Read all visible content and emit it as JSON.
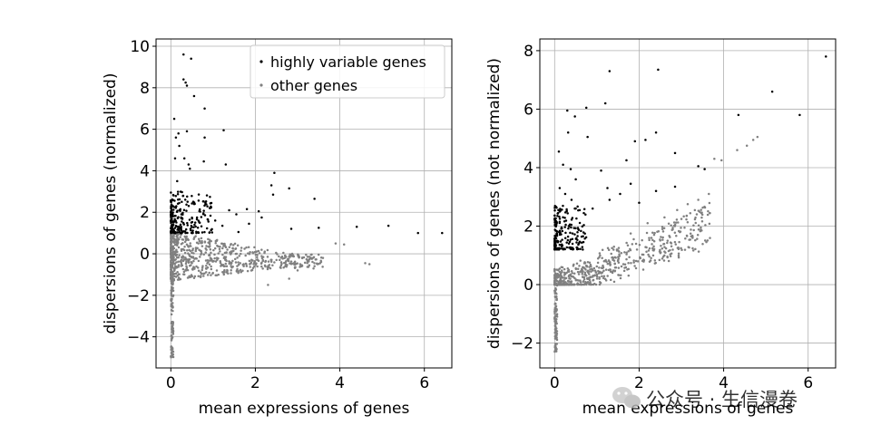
{
  "chart_data": [
    {
      "type": "scatter",
      "title": "",
      "xlabel": "mean expressions of genes",
      "ylabel": "dispersions of genes (normalized)",
      "xlim": [
        -0.35,
        6.65
      ],
      "ylim": [
        -5.5,
        10.35
      ],
      "xticks": [
        0,
        2,
        4,
        6
      ],
      "yticks": [
        -4,
        -2,
        0,
        2,
        4,
        6,
        8,
        10
      ],
      "grid": true,
      "legend": {
        "placement": "top-right",
        "entries": [
          "highly variable genes",
          "other genes"
        ]
      },
      "series": [
        {
          "name": "highly variable genes",
          "color": "#000000",
          "points": [
            [
              0.3,
              9.6
            ],
            [
              0.48,
              9.4
            ],
            [
              0.3,
              8.4
            ],
            [
              0.35,
              8.25
            ],
            [
              0.38,
              8.1
            ],
            [
              0.55,
              7.6
            ],
            [
              0.8,
              7.0
            ],
            [
              0.08,
              6.5
            ],
            [
              0.38,
              5.9
            ],
            [
              0.18,
              5.8
            ],
            [
              0.12,
              5.6
            ],
            [
              0.8,
              5.6
            ],
            [
              1.25,
              5.95
            ],
            [
              0.2,
              5.2
            ],
            [
              0.32,
              4.6
            ],
            [
              0.42,
              4.3
            ],
            [
              0.78,
              4.45
            ],
            [
              1.3,
              4.3
            ],
            [
              0.1,
              4.6
            ],
            [
              0.45,
              4.1
            ],
            [
              2.45,
              3.9
            ],
            [
              2.38,
              3.3
            ],
            [
              2.8,
              3.15
            ],
            [
              2.42,
              2.85
            ],
            [
              3.4,
              2.65
            ],
            [
              0.55,
              2.4
            ],
            [
              0.92,
              2.2
            ],
            [
              1.38,
              2.1
            ],
            [
              1.8,
              2.15
            ],
            [
              2.08,
              2.05
            ],
            [
              1.55,
              1.9
            ],
            [
              2.15,
              1.75
            ],
            [
              1.05,
              1.6
            ],
            [
              1.85,
              1.45
            ],
            [
              1.22,
              1.35
            ],
            [
              2.85,
              1.2
            ],
            [
              3.5,
              1.25
            ],
            [
              4.4,
              1.3
            ],
            [
              5.15,
              1.35
            ],
            [
              5.85,
              1.0
            ],
            [
              6.42,
              1.0
            ],
            [
              1.6,
              1.05
            ],
            [
              0.15,
              3.5
            ],
            [
              0.05,
              2.3
            ],
            [
              0.25,
              1.9
            ],
            [
              0.62,
              1.75
            ]
          ],
          "cluster": {
            "x_range": [
              0.0,
              1.0
            ],
            "y_range": [
              1.0,
              3.0
            ],
            "count": 230
          }
        },
        {
          "name": "other genes",
          "color": "#808080",
          "points": [
            [
              2.5,
              -0.3
            ],
            [
              2.9,
              -0.1
            ],
            [
              3.2,
              -0.05
            ],
            [
              3.6,
              -0.2
            ],
            [
              3.9,
              0.5
            ],
            [
              4.1,
              0.45
            ],
            [
              4.6,
              -0.45
            ],
            [
              4.7,
              -0.5
            ],
            [
              2.3,
              -1.5
            ],
            [
              2.8,
              -1.2
            ],
            [
              3.0,
              -0.8
            ],
            [
              3.4,
              -0.6
            ]
          ],
          "cluster": {
            "x_range": [
              0.0,
              3.6
            ],
            "y_range": [
              -1.3,
              1.1
            ],
            "count": 720,
            "stalk_y_range": [
              -5.0,
              -1.3
            ]
          }
        }
      ]
    },
    {
      "type": "scatter",
      "title": "",
      "xlabel": "mean expressions of genes",
      "ylabel": "dispersions of genes (not normalized)",
      "xlim": [
        -0.35,
        6.65
      ],
      "ylim": [
        -2.85,
        8.4
      ],
      "xticks": [
        0,
        2,
        4,
        6
      ],
      "yticks": [
        -2,
        0,
        2,
        4,
        6,
        8
      ],
      "grid": true,
      "series": [
        {
          "name": "highly variable genes",
          "color": "#000000",
          "points": [
            [
              6.42,
              7.8
            ],
            [
              2.45,
              7.35
            ],
            [
              1.3,
              7.3
            ],
            [
              1.2,
              6.2
            ],
            [
              5.15,
              6.6
            ],
            [
              0.75,
              6.05
            ],
            [
              0.3,
              5.95
            ],
            [
              0.48,
              5.75
            ],
            [
              0.32,
              5.2
            ],
            [
              0.78,
              5.05
            ],
            [
              1.9,
              4.9
            ],
            [
              4.35,
              5.8
            ],
            [
              5.8,
              5.8
            ],
            [
              2.4,
              5.2
            ],
            [
              2.85,
              4.5
            ],
            [
              2.15,
              4.95
            ],
            [
              0.1,
              4.55
            ],
            [
              0.2,
              4.1
            ],
            [
              0.38,
              3.95
            ],
            [
              1.1,
              3.9
            ],
            [
              1.7,
              4.25
            ],
            [
              3.4,
              4.05
            ],
            [
              3.55,
              3.95
            ],
            [
              0.5,
              3.6
            ],
            [
              1.25,
              3.3
            ],
            [
              1.8,
              3.45
            ],
            [
              2.4,
              3.2
            ],
            [
              2.85,
              3.35
            ],
            [
              1.55,
              3.1
            ],
            [
              2.0,
              2.8
            ],
            [
              0.9,
              2.6
            ],
            [
              1.3,
              2.9
            ],
            [
              0.12,
              3.3
            ],
            [
              0.25,
              3.1
            ],
            [
              0.4,
              2.9
            ],
            [
              0.5,
              2.6
            ]
          ],
          "cluster": {
            "x_range": [
              0.0,
              0.75
            ],
            "y_range": [
              1.2,
              2.7
            ],
            "count": 200
          }
        },
        {
          "name": "other genes",
          "color": "#808080",
          "points": [
            [
              4.8,
              5.05
            ],
            [
              4.7,
              4.95
            ],
            [
              4.55,
              4.75
            ],
            [
              4.32,
              4.6
            ],
            [
              3.78,
              4.3
            ],
            [
              3.95,
              4.25
            ],
            [
              3.65,
              3.1
            ],
            [
              3.4,
              2.9
            ],
            [
              3.15,
              2.75
            ],
            [
              2.9,
              2.55
            ],
            [
              2.6,
              2.3
            ],
            [
              2.2,
              2.1
            ],
            [
              1.8,
              1.75
            ]
          ],
          "cluster": {
            "x_range": [
              0.0,
              3.7
            ],
            "y_range": [
              0.0,
              3.0
            ],
            "count": 720,
            "stalk_y_range": [
              -2.3,
              0.0
            ]
          }
        }
      ]
    }
  ],
  "watermark": {
    "icon": "wechat-icon",
    "text": "公众号 · 生信漫卷"
  }
}
